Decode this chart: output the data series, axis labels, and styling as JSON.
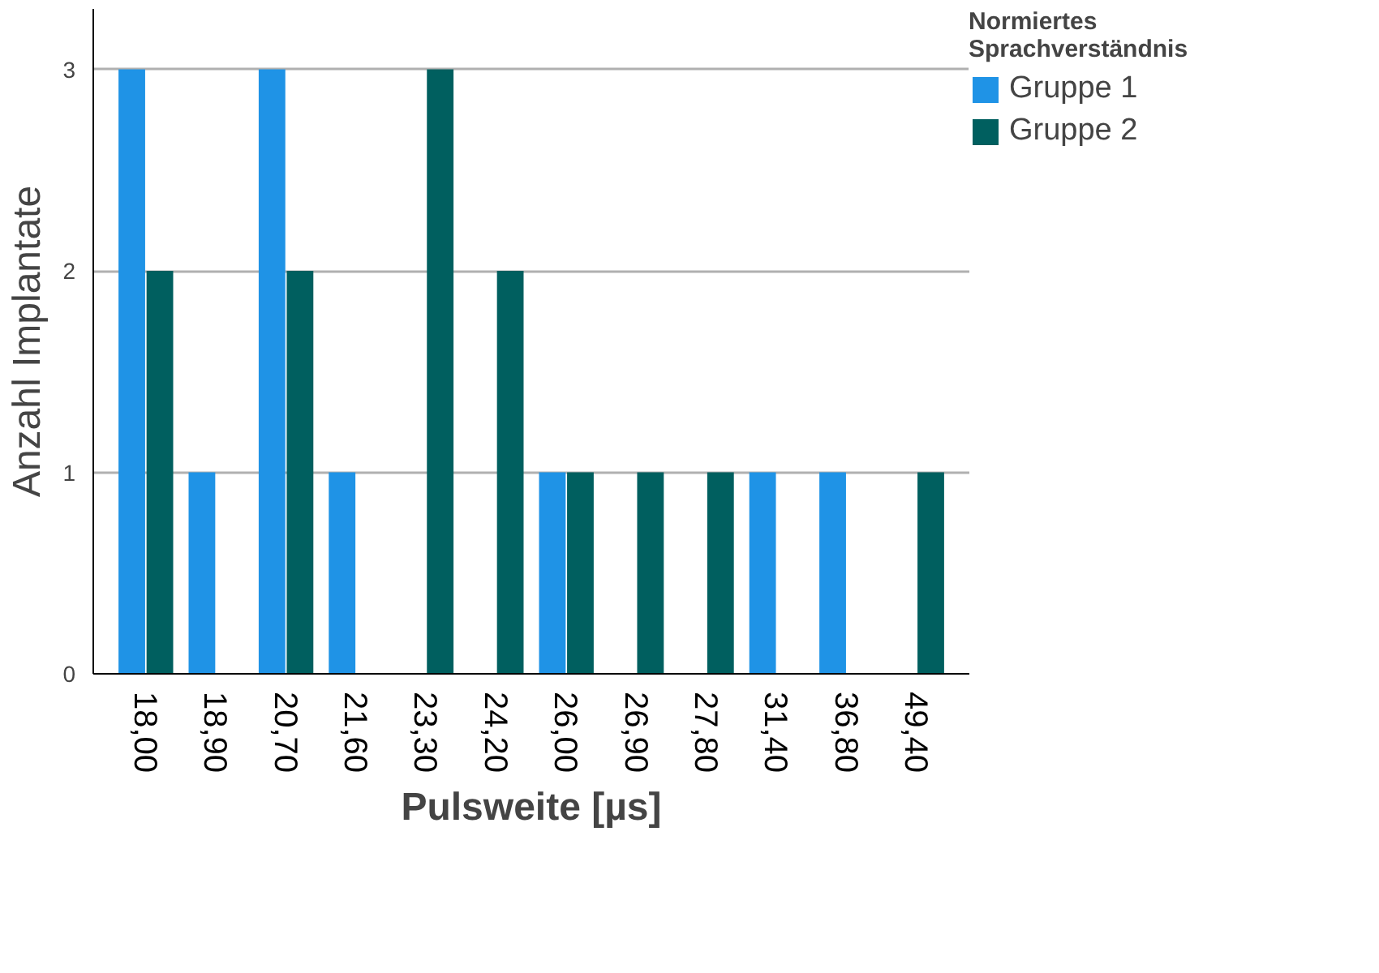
{
  "chart_data": {
    "type": "bar",
    "xlabel": "Pulsweite [µs]",
    "ylabel": "Anzahl Implantate",
    "legend_title": "Normiertes Sprachverständnis",
    "categories": [
      "18,00",
      "18,90",
      "20,70",
      "21,60",
      "23,30",
      "24,20",
      "26,00",
      "26,90",
      "27,80",
      "31,40",
      "36,80",
      "49,40"
    ],
    "series": [
      {
        "name": "Gruppe 1",
        "color": "#1f93e6",
        "values": [
          3,
          1,
          3,
          1,
          null,
          null,
          1,
          null,
          null,
          1,
          1,
          null
        ]
      },
      {
        "name": "Gruppe 2",
        "color": "#005f5f",
        "values": [
          2,
          null,
          2,
          null,
          3,
          2,
          1,
          1,
          1,
          null,
          null,
          1
        ]
      }
    ],
    "ylim": [
      0,
      3.3
    ],
    "yticks": [
      0,
      1,
      2,
      3
    ],
    "grid": "y",
    "legend": "top right"
  }
}
